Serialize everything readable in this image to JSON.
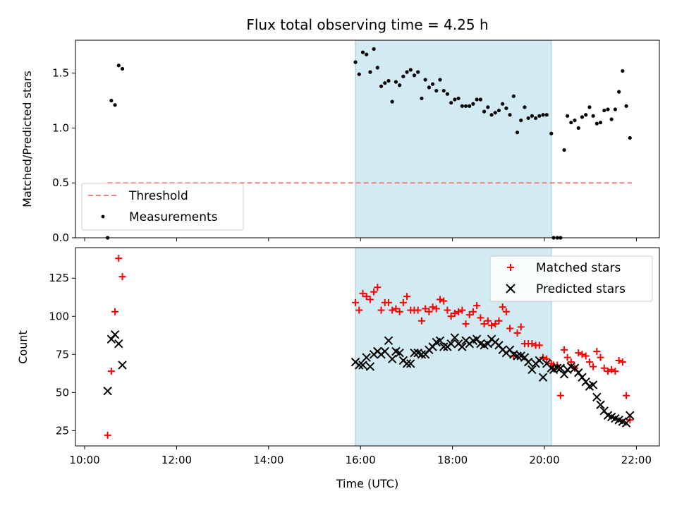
{
  "chart_data": [
    {
      "type": "scatter",
      "title": "Flux total observing time = 4.25 h",
      "ylabel": "Matched/Predicted stars",
      "xlabel": "",
      "xlim": [
        9.8,
        22.5
      ],
      "ylim": [
        0,
        1.8
      ],
      "yticks": [
        0,
        0.5,
        1.0,
        1.5
      ],
      "ytick_labels": [
        "0.0",
        "0.5",
        "1.0",
        "1.5"
      ],
      "shaded_region": {
        "x_start": 15.89,
        "x_end": 20.15,
        "color": "#add8e6"
      },
      "threshold": {
        "name": "Threshold",
        "value": 0.5,
        "x_start": 10.5,
        "x_end": 21.9,
        "color": "#f08080"
      },
      "legend_position": "lower-left",
      "series": [
        {
          "name": "Measurements",
          "color": "#000000",
          "marker": "dot",
          "x": [
            10.5,
            10.58,
            10.66,
            10.74,
            10.82,
            15.89,
            15.97,
            16.05,
            16.13,
            16.21,
            16.29,
            16.37,
            16.45,
            16.53,
            16.61,
            16.69,
            16.77,
            16.85,
            16.93,
            17.01,
            17.09,
            17.17,
            17.25,
            17.33,
            17.41,
            17.49,
            17.57,
            17.65,
            17.73,
            17.81,
            17.89,
            17.97,
            18.05,
            18.13,
            18.21,
            18.29,
            18.37,
            18.45,
            18.53,
            18.61,
            18.69,
            18.77,
            18.85,
            18.93,
            19.01,
            19.09,
            19.17,
            19.25,
            19.33,
            19.41,
            19.49,
            19.57,
            19.65,
            19.73,
            19.81,
            19.89,
            19.97,
            20.05,
            20.15,
            20.2,
            20.28,
            20.35,
            20.43,
            20.5,
            20.58,
            20.66,
            20.74,
            20.82,
            20.9,
            20.98,
            21.06,
            21.14,
            21.22,
            21.3,
            21.38,
            21.46,
            21.54,
            21.62,
            21.7,
            21.78,
            21.86
          ],
          "y": [
            0.0,
            1.25,
            1.21,
            1.57,
            1.54,
            1.6,
            1.49,
            1.69,
            1.67,
            1.51,
            1.72,
            1.55,
            1.38,
            1.41,
            1.43,
            1.24,
            1.42,
            1.39,
            1.47,
            1.51,
            1.53,
            1.48,
            1.51,
            1.27,
            1.44,
            1.37,
            1.4,
            1.34,
            1.44,
            1.34,
            1.31,
            1.23,
            1.26,
            1.27,
            1.2,
            1.2,
            1.2,
            1.22,
            1.26,
            1.26,
            1.15,
            1.19,
            1.12,
            1.14,
            1.16,
            1.22,
            1.18,
            1.12,
            1.29,
            0.96,
            1.07,
            1.19,
            1.09,
            1.11,
            1.09,
            1.11,
            1.12,
            1.12,
            0.95,
            0.0,
            0.0,
            0.0,
            0.8,
            1.11,
            1.05,
            1.07,
            1.0,
            1.1,
            1.12,
            1.19,
            1.11,
            1.04,
            1.05,
            1.16,
            1.17,
            1.08,
            1.17,
            1.33,
            1.52,
            1.2,
            0.91
          ]
        }
      ]
    },
    {
      "type": "scatter",
      "title": "",
      "ylabel": "Count",
      "xlabel": "Time (UTC)",
      "xlim": [
        9.8,
        22.5
      ],
      "ylim": [
        15,
        145
      ],
      "yticks": [
        25,
        50,
        75,
        100,
        125
      ],
      "ytick_labels": [
        "25",
        "50",
        "75",
        "100",
        "125"
      ],
      "xticks": [
        10,
        12,
        14,
        16,
        18,
        20,
        22
      ],
      "xtick_labels": [
        "10:00",
        "12:00",
        "14:00",
        "16:00",
        "18:00",
        "20:00",
        "22:00"
      ],
      "shaded_region": {
        "x_start": 15.89,
        "x_end": 20.15,
        "color": "#add8e6"
      },
      "legend_position": "upper-right",
      "series": [
        {
          "name": "Matched stars",
          "color": "#ff0000",
          "marker": "plus",
          "x": [
            10.5,
            10.58,
            10.66,
            10.74,
            10.82,
            15.89,
            15.97,
            16.05,
            16.13,
            16.21,
            16.29,
            16.37,
            16.45,
            16.53,
            16.61,
            16.69,
            16.77,
            16.85,
            16.93,
            17.01,
            17.09,
            17.17,
            17.25,
            17.33,
            17.41,
            17.49,
            17.57,
            17.65,
            17.73,
            17.81,
            17.89,
            17.97,
            18.05,
            18.13,
            18.21,
            18.29,
            18.37,
            18.45,
            18.53,
            18.61,
            18.69,
            18.77,
            18.85,
            18.93,
            19.01,
            19.09,
            19.17,
            19.25,
            19.33,
            19.41,
            19.49,
            19.57,
            19.65,
            19.73,
            19.81,
            19.89,
            19.97,
            20.05,
            20.15,
            20.2,
            20.28,
            20.35,
            20.43,
            20.5,
            20.58,
            20.66,
            20.74,
            20.82,
            20.9,
            20.98,
            21.06,
            21.14,
            21.22,
            21.3,
            21.38,
            21.46,
            21.54,
            21.62,
            21.7,
            21.78,
            21.86
          ],
          "y": [
            22,
            64,
            103,
            138,
            126,
            109,
            104,
            115,
            113,
            111,
            116,
            119,
            104,
            109,
            109,
            104,
            105,
            103,
            109,
            113,
            104,
            104,
            104,
            97,
            105,
            103,
            106,
            105,
            111,
            110,
            104,
            100,
            102,
            103,
            104,
            95,
            101,
            103,
            107,
            99,
            95,
            97,
            94,
            95,
            97,
            106,
            103,
            92,
            74,
            89,
            93,
            82,
            82,
            82,
            81,
            81,
            73,
            72,
            69,
            68,
            68,
            48,
            78,
            73,
            70,
            66,
            76,
            75,
            74,
            70,
            67,
            77,
            73,
            66,
            64,
            65,
            64,
            71,
            70,
            48,
            32
          ]
        },
        {
          "name": "Predicted stars",
          "color": "#000000",
          "marker": "x",
          "x": [
            10.5,
            10.58,
            10.66,
            10.74,
            10.82,
            15.89,
            15.97,
            16.05,
            16.13,
            16.21,
            16.29,
            16.37,
            16.45,
            16.53,
            16.61,
            16.69,
            16.77,
            16.85,
            16.93,
            17.01,
            17.09,
            17.17,
            17.25,
            17.33,
            17.41,
            17.49,
            17.57,
            17.65,
            17.73,
            17.81,
            17.89,
            17.97,
            18.05,
            18.13,
            18.21,
            18.29,
            18.37,
            18.45,
            18.53,
            18.61,
            18.69,
            18.77,
            18.85,
            18.93,
            19.01,
            19.09,
            19.17,
            19.25,
            19.33,
            19.41,
            19.49,
            19.57,
            19.65,
            19.73,
            19.81,
            19.89,
            19.97,
            20.05,
            20.15,
            20.2,
            20.28,
            20.35,
            20.43,
            20.5,
            20.58,
            20.66,
            20.74,
            20.82,
            20.9,
            20.98,
            21.06,
            21.14,
            21.22,
            21.3,
            21.38,
            21.46,
            21.54,
            21.62,
            21.7,
            21.78,
            21.86
          ],
          "y": [
            51,
            85,
            88,
            82,
            68,
            70,
            68,
            68,
            73,
            67,
            75,
            77,
            75,
            77,
            84,
            72,
            77,
            76,
            71,
            69,
            69,
            76,
            76,
            75,
            75,
            78,
            80,
            83,
            84,
            80,
            80,
            82,
            86,
            82,
            80,
            84,
            82,
            84,
            85,
            82,
            81,
            82,
            85,
            83,
            81,
            78,
            76,
            78,
            75,
            74,
            74,
            73,
            70,
            65,
            69,
            71,
            60,
            69,
            66,
            65,
            66,
            66,
            62,
            65,
            67,
            66,
            63,
            60,
            57,
            54,
            55,
            47,
            42,
            38,
            35,
            34,
            33,
            32,
            31,
            30,
            35
          ]
        }
      ]
    }
  ]
}
